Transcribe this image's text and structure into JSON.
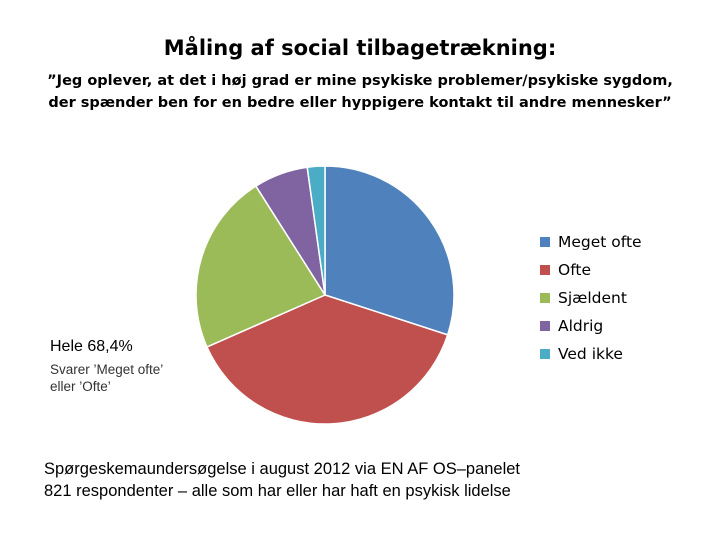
{
  "title": "Måling af social tilbagetrækning:",
  "subtitle": "”Jeg oplever, at det i høj grad er mine psykiske  problemer/psykiske sygdom, der spænder ben for en bedre eller hyppigere kontakt til andre mennesker”",
  "callout": {
    "title": "Hele 68,4%",
    "text": "Svarer  ’Meget ofte’ eller ’Ofte’"
  },
  "footer": {
    "line1": "Spørgeskemaundersøgelse i august 2012 via EN AF OS–panelet",
    "line2": "821 respondenter – alle som har eller har haft en psykisk lidelse"
  },
  "chart_data": {
    "type": "pie",
    "categories": [
      "Meget ofte",
      "Ofte",
      "Sjældent",
      "Aldrig",
      "Ved ikke"
    ],
    "values": [
      30.0,
      38.4,
      22.6,
      6.8,
      2.2
    ],
    "colors": [
      "#4f81bd",
      "#c0504d",
      "#9bbb59",
      "#8064a2",
      "#4bacc6"
    ],
    "legend": "right"
  }
}
